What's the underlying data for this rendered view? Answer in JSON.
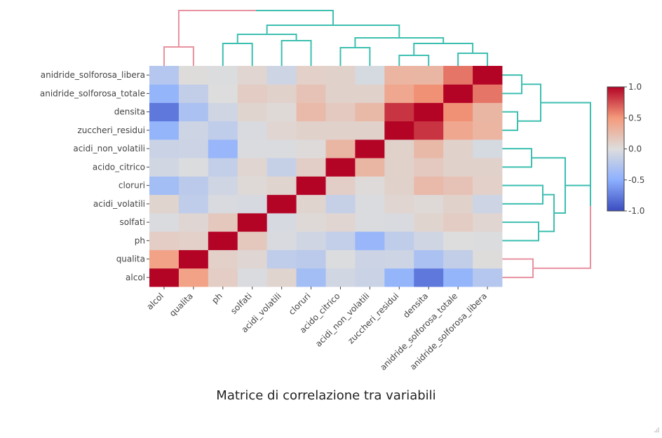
{
  "chart_data": {
    "type": "heatmap",
    "title": "Matrice di correlazione tra variabili",
    "x_labels": [
      "alcol",
      "qualita",
      "ph",
      "solfati",
      "acidi_volatili",
      "cloruri",
      "acido_citrico",
      "acidi_non_volatili",
      "zuccheri_residui",
      "densita",
      "anidride_solforosa_totale",
      "anidride_solforosa_libera"
    ],
    "y_labels": [
      "alcol",
      "qualita",
      "ph",
      "solfati",
      "acidi_volatili",
      "cloruri",
      "acido_citrico",
      "acidi_non_volatili",
      "zuccheri_residui",
      "densita",
      "anidride_solforosa_totale",
      "anidride_solforosa_libera"
    ],
    "z": [
      [
        1.0,
        0.44,
        0.12,
        -0.02,
        0.07,
        -0.36,
        -0.08,
        -0.12,
        -0.45,
        -0.78,
        -0.45,
        -0.25
      ],
      [
        0.44,
        1.0,
        0.1,
        0.05,
        -0.19,
        -0.21,
        -0.01,
        -0.11,
        -0.1,
        -0.31,
        -0.17,
        0.01
      ],
      [
        0.12,
        0.1,
        1.0,
        0.16,
        -0.03,
        -0.09,
        -0.16,
        -0.43,
        -0.19,
        -0.09,
        0.0,
        -0.01
      ],
      [
        -0.02,
        0.05,
        0.16,
        1.0,
        -0.04,
        0.03,
        0.06,
        -0.02,
        -0.03,
        0.07,
        0.13,
        0.06
      ],
      [
        0.07,
        -0.19,
        -0.03,
        -0.04,
        1.0,
        0.07,
        -0.15,
        -0.02,
        0.06,
        0.03,
        0.09,
        -0.1
      ],
      [
        -0.36,
        -0.21,
        -0.09,
        0.03,
        0.07,
        1.0,
        0.11,
        0.02,
        0.09,
        0.26,
        0.2,
        0.1
      ],
      [
        -0.08,
        -0.01,
        -0.16,
        0.06,
        -0.15,
        0.11,
        1.0,
        0.29,
        0.09,
        0.15,
        0.09,
        0.09
      ],
      [
        -0.12,
        -0.11,
        -0.43,
        -0.02,
        -0.02,
        0.02,
        0.29,
        1.0,
        0.09,
        0.27,
        0.09,
        -0.05
      ],
      [
        -0.45,
        -0.1,
        -0.19,
        -0.03,
        0.06,
        0.09,
        0.09,
        0.09,
        1.0,
        0.84,
        0.4,
        0.3
      ],
      [
        -0.78,
        -0.31,
        -0.09,
        0.07,
        0.03,
        0.26,
        0.15,
        0.27,
        0.84,
        1.0,
        0.53,
        0.29
      ],
      [
        -0.45,
        -0.17,
        0.0,
        0.13,
        0.09,
        0.2,
        0.09,
        0.09,
        0.4,
        0.53,
        1.0,
        0.62
      ],
      [
        -0.25,
        0.01,
        -0.01,
        0.06,
        -0.1,
        0.1,
        0.09,
        -0.05,
        0.3,
        0.29,
        0.62,
        1.0
      ]
    ],
    "colorscale": "RdBu_reversed",
    "zlim": [
      -1,
      1
    ],
    "colorbar_ticks": [
      "1.0",
      "0.5",
      "0.0",
      "-0.5",
      "-1.0"
    ],
    "colorbar_tick_values": [
      1.0,
      0.5,
      0.0,
      -0.5,
      -1.0
    ],
    "dendrogram_colors": {
      "cluster_a": "#e8919f",
      "cluster_b": "#3dbfb0"
    }
  }
}
